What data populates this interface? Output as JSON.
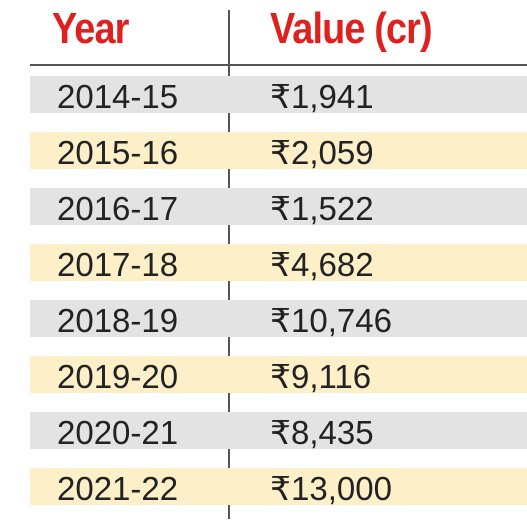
{
  "chart_data": {
    "type": "table",
    "columns": [
      "Year",
      "Value (cr)"
    ],
    "rows": [
      {
        "year": "2014-15",
        "value": "₹1,941"
      },
      {
        "year": "2015-16",
        "value": "₹2,059"
      },
      {
        "year": "2016-17",
        "value": "₹1,522"
      },
      {
        "year": "2017-18",
        "value": "₹4,682"
      },
      {
        "year": "2018-19",
        "value": "₹10,746"
      },
      {
        "year": "2019-20",
        "value": "₹9,116"
      },
      {
        "year": "2020-21",
        "value": "₹8,435"
      },
      {
        "year": "2021-22",
        "value": "₹13,000"
      }
    ],
    "values": [
      1941,
      2059,
      1522,
      4682,
      10746,
      9116,
      8435,
      13000
    ]
  },
  "colors": {
    "header_text": "#e0201f",
    "row_gray": "#e3e3e3",
    "row_yellow": "#fdf0c9",
    "divider": "#555555",
    "cell_text": "#222222"
  }
}
